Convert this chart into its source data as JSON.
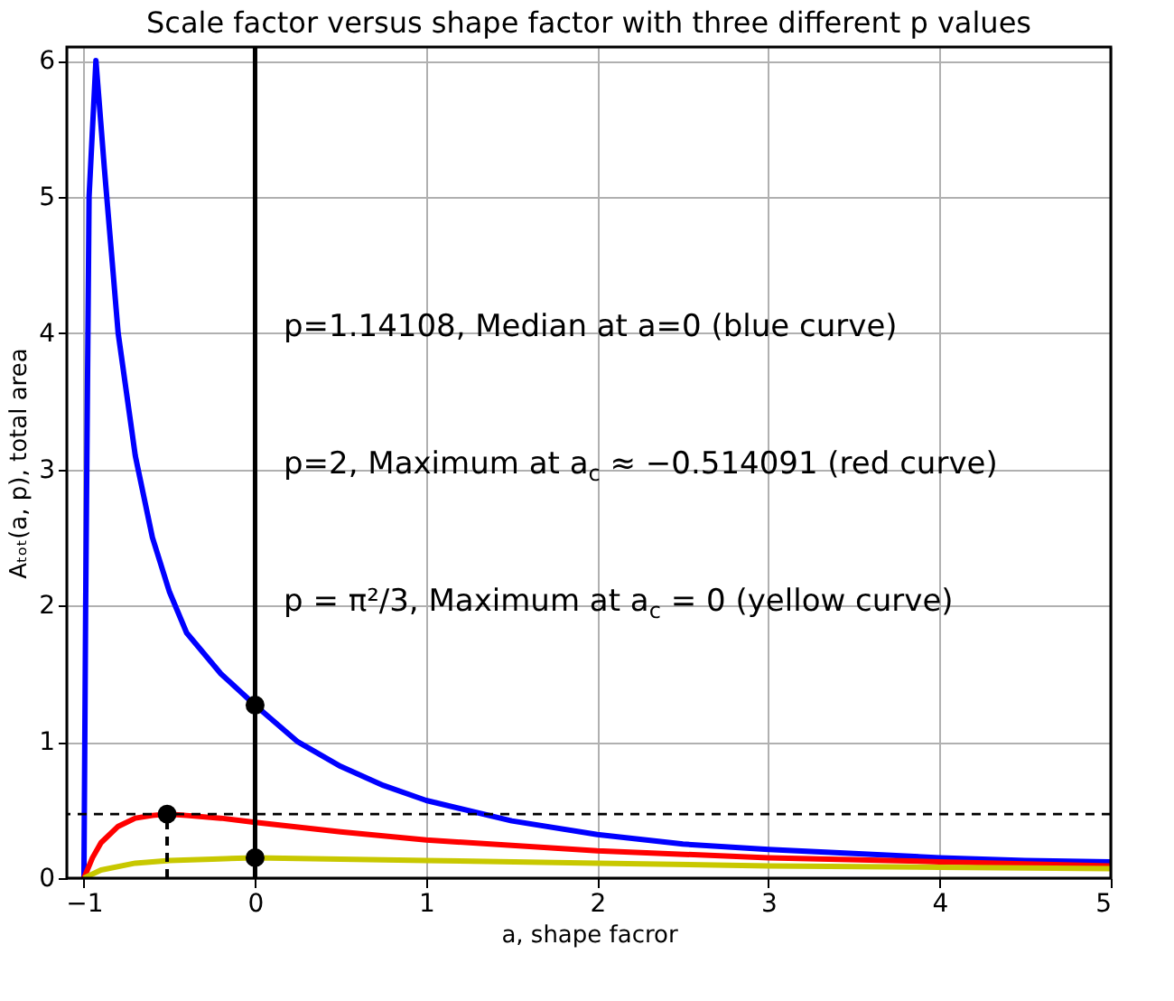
{
  "chart_data": {
    "type": "line",
    "title": "Scale factor versus shape factor with three different p values",
    "xlabel": "a, shape facror",
    "ylabel": "Aₜₒₜ(a, p), total area",
    "xlim": [
      -1.1,
      5
    ],
    "ylim": [
      0,
      6.1
    ],
    "xticks": [
      {
        "value": -1,
        "label": "−1"
      },
      0,
      1,
      2,
      3,
      4,
      5
    ],
    "yticks": [
      0,
      1,
      2,
      3,
      4,
      5,
      6
    ],
    "grid": true,
    "legend": false,
    "series": [
      {
        "color": "#0000ff",
        "x": [
          -1,
          -0.99,
          -0.97,
          -0.93,
          -0.88,
          -0.8,
          -0.7,
          -0.6,
          -0.5,
          -0.4,
          -0.2,
          0,
          0.25,
          0.5,
          0.75,
          1,
          1.5,
          2,
          2.5,
          3,
          3.5,
          4,
          4.5,
          5
        ],
        "values": [
          0,
          2,
          5,
          6.0,
          5.2,
          4.0,
          3.1,
          2.5,
          2.1,
          1.8,
          1.5,
          1.27,
          1.0,
          0.82,
          0.68,
          0.57,
          0.42,
          0.32,
          0.25,
          0.21,
          0.18,
          0.15,
          0.13,
          0.12
        ]
      },
      {
        "color": "#ff0000",
        "x": [
          -1,
          -0.95,
          -0.9,
          -0.8,
          -0.7,
          -0.6,
          -0.514,
          -0.4,
          -0.2,
          0,
          0.5,
          1,
          1.5,
          2,
          3,
          4,
          5
        ],
        "values": [
          0,
          0.15,
          0.26,
          0.38,
          0.44,
          0.46,
          0.47,
          0.46,
          0.44,
          0.41,
          0.34,
          0.28,
          0.24,
          0.2,
          0.15,
          0.12,
          0.09
        ]
      },
      {
        "color": "#c8c800",
        "x": [
          -1,
          -0.9,
          -0.7,
          -0.5,
          -0.25,
          0,
          0.5,
          1,
          2,
          3,
          4,
          5
        ],
        "values": [
          0,
          0.06,
          0.11,
          0.13,
          0.14,
          0.15,
          0.14,
          0.13,
          0.11,
          0.09,
          0.08,
          0.07
        ]
      },
      {
        "type": "line",
        "color": "#000000",
        "line_style": "dashed",
        "x": [
          -0.514,
          -0.514
        ],
        "values": [
          0,
          0.47
        ]
      },
      {
        "type": "scatter",
        "color": "#000000",
        "marker": "circle",
        "x": [
          -0.514,
          0,
          0
        ],
        "values": [
          0.47,
          1.27,
          0.15
        ]
      }
    ],
    "ref_lines": [
      {
        "axis": "x",
        "value": 0,
        "color": "#000000",
        "line_style": "solid"
      },
      {
        "axis": "y",
        "value": 0.47,
        "color": "#000000",
        "line_style": "dashed"
      }
    ],
    "annotations": [
      "p=1.14108, Median at a=0 (blue curve)",
      "p=2, Maximum at a$_{c}$ ≈ −0.514091 (red curve)",
      "p = π²/3, Maximum at a$_{c}$ = 0 (yellow curve)"
    ]
  }
}
